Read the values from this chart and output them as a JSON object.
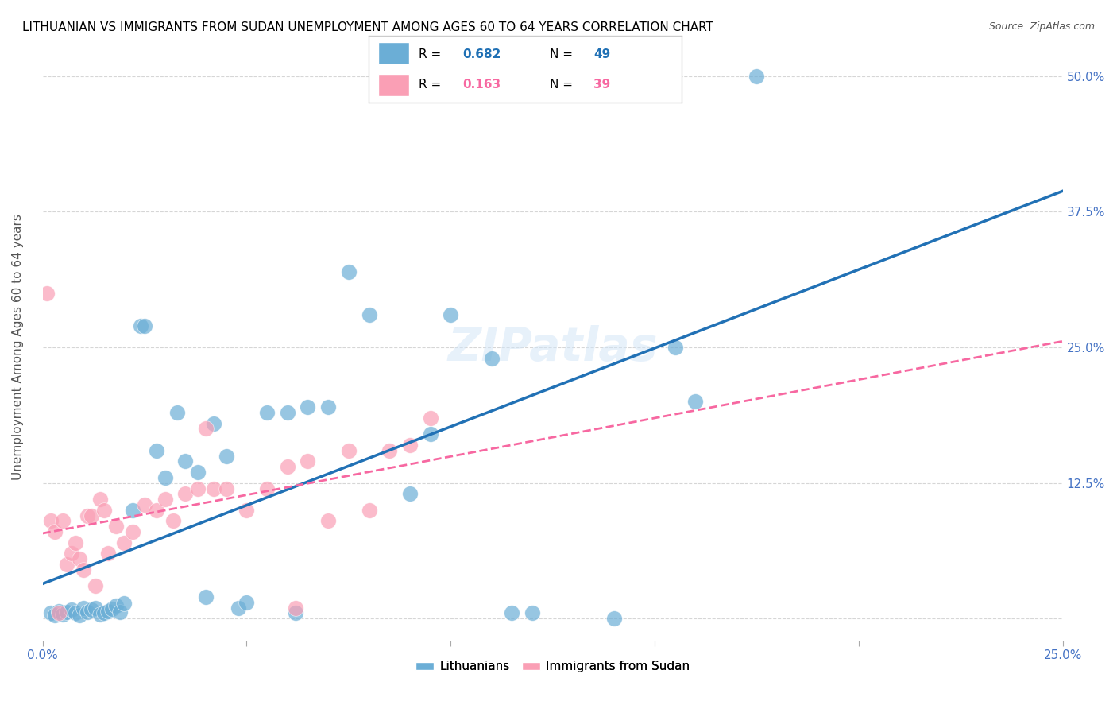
{
  "title": "LITHUANIAN VS IMMIGRANTS FROM SUDAN UNEMPLOYMENT AMONG AGES 60 TO 64 YEARS CORRELATION CHART",
  "source": "Source: ZipAtlas.com",
  "ylabel": "Unemployment Among Ages 60 to 64 years",
  "xlim": [
    0.0,
    0.25
  ],
  "ylim": [
    -0.02,
    0.52
  ],
  "xticks": [
    0.0,
    0.05,
    0.1,
    0.15,
    0.2,
    0.25
  ],
  "xticklabels": [
    "0.0%",
    "",
    "",
    "",
    "",
    "25.0%"
  ],
  "ytick_positions": [
    0.0,
    0.125,
    0.25,
    0.375,
    0.5
  ],
  "yticklabels": [
    "",
    "12.5%",
    "25.0%",
    "37.5%",
    "50.0%"
  ],
  "watermark": "ZIPatlas",
  "legend_r1": "0.682",
  "legend_n1": "49",
  "legend_r2": "0.163",
  "legend_n2": "39",
  "blue_color": "#6baed6",
  "pink_color": "#fa9fb5",
  "blue_line_color": "#2171b5",
  "pink_line_color": "#f768a1",
  "lit_x": [
    0.002,
    0.003,
    0.004,
    0.005,
    0.006,
    0.007,
    0.008,
    0.009,
    0.01,
    0.011,
    0.012,
    0.013,
    0.014,
    0.015,
    0.016,
    0.017,
    0.018,
    0.019,
    0.02,
    0.022,
    0.024,
    0.025,
    0.028,
    0.03,
    0.033,
    0.035,
    0.038,
    0.04,
    0.042,
    0.045,
    0.048,
    0.05,
    0.055,
    0.06,
    0.062,
    0.065,
    0.07,
    0.075,
    0.08,
    0.09,
    0.095,
    0.1,
    0.11,
    0.115,
    0.12,
    0.14,
    0.155,
    0.16,
    0.175
  ],
  "lit_y": [
    0.005,
    0.003,
    0.007,
    0.004,
    0.006,
    0.008,
    0.005,
    0.003,
    0.01,
    0.006,
    0.008,
    0.01,
    0.004,
    0.005,
    0.007,
    0.009,
    0.012,
    0.006,
    0.014,
    0.1,
    0.27,
    0.27,
    0.155,
    0.13,
    0.19,
    0.145,
    0.135,
    0.02,
    0.18,
    0.15,
    0.01,
    0.015,
    0.19,
    0.19,
    0.005,
    0.195,
    0.195,
    0.32,
    0.28,
    0.115,
    0.17,
    0.28,
    0.24,
    0.005,
    0.005,
    0.0,
    0.25,
    0.2,
    0.5
  ],
  "sud_x": [
    0.001,
    0.002,
    0.003,
    0.004,
    0.005,
    0.006,
    0.007,
    0.008,
    0.009,
    0.01,
    0.011,
    0.012,
    0.013,
    0.014,
    0.015,
    0.016,
    0.018,
    0.02,
    0.022,
    0.025,
    0.028,
    0.03,
    0.032,
    0.035,
    0.038,
    0.04,
    0.042,
    0.045,
    0.05,
    0.055,
    0.06,
    0.062,
    0.065,
    0.07,
    0.075,
    0.08,
    0.085,
    0.09,
    0.095
  ],
  "sud_y": [
    0.3,
    0.09,
    0.08,
    0.005,
    0.09,
    0.05,
    0.06,
    0.07,
    0.055,
    0.045,
    0.095,
    0.095,
    0.03,
    0.11,
    0.1,
    0.06,
    0.085,
    0.07,
    0.08,
    0.105,
    0.1,
    0.11,
    0.09,
    0.115,
    0.12,
    0.175,
    0.12,
    0.12,
    0.1,
    0.12,
    0.14,
    0.01,
    0.145,
    0.09,
    0.155,
    0.1,
    0.155,
    0.16,
    0.185
  ],
  "background_color": "#ffffff",
  "title_color": "#000000",
  "axis_label_color": "#555555",
  "tick_color": "#4472C4",
  "grid_color": "#cccccc",
  "title_fontsize": 11,
  "source_fontsize": 9,
  "watermark_fontsize": 42,
  "watermark_color": "#d0e4f7",
  "watermark_alpha": 0.5
}
